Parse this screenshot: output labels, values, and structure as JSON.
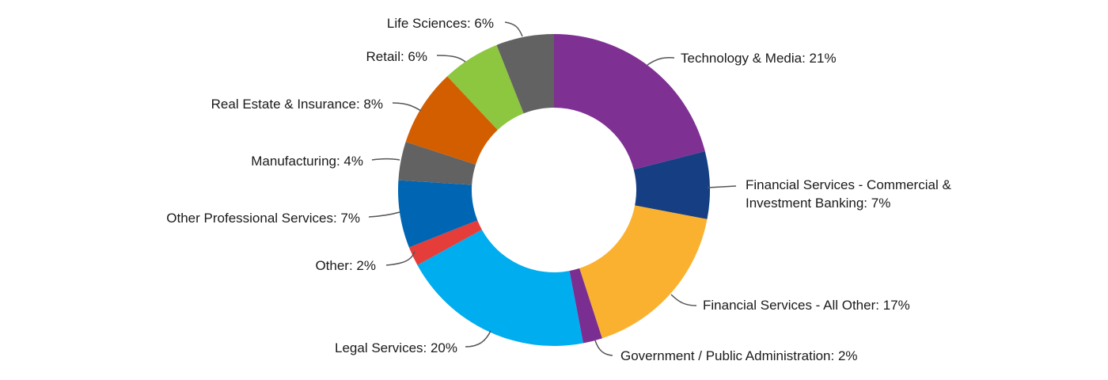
{
  "chart_data": {
    "type": "pie",
    "variant": "donut",
    "title": "",
    "legend": "none",
    "slices": [
      {
        "label": "Technology & Media: 21%",
        "value": 21,
        "color": "#7F3093"
      },
      {
        "label": "Financial Services - Commercial & Investment Banking: 7%",
        "lines": [
          "Financial Services - Commercial &",
          "Investment Banking: 7%"
        ],
        "value": 7,
        "color": "#163F83"
      },
      {
        "label": "Financial Services - All Other: 17%",
        "value": 17,
        "color": "#FBB130"
      },
      {
        "label": "Government / Public Administration: 2%",
        "value": 2,
        "color": "#7B2E92"
      },
      {
        "label": "Legal Services: 20%",
        "value": 20,
        "color": "#00ADEE"
      },
      {
        "label": "Other: 2%",
        "value": 2,
        "color": "#E43D3A"
      },
      {
        "label": "Other Professional Services: 7%",
        "value": 7,
        "color": "#0066B3"
      },
      {
        "label": "Manufacturing: 4%",
        "value": 4,
        "color": "#626262"
      },
      {
        "label": "Real Estate & Insurance: 8%",
        "value": 8,
        "color": "#D35E00"
      },
      {
        "label": "Retail: 6%",
        "value": 6,
        "color": "#8DC63F"
      },
      {
        "label": "Life Sciences: 6%",
        "value": 6,
        "color": "#626262"
      }
    ]
  }
}
